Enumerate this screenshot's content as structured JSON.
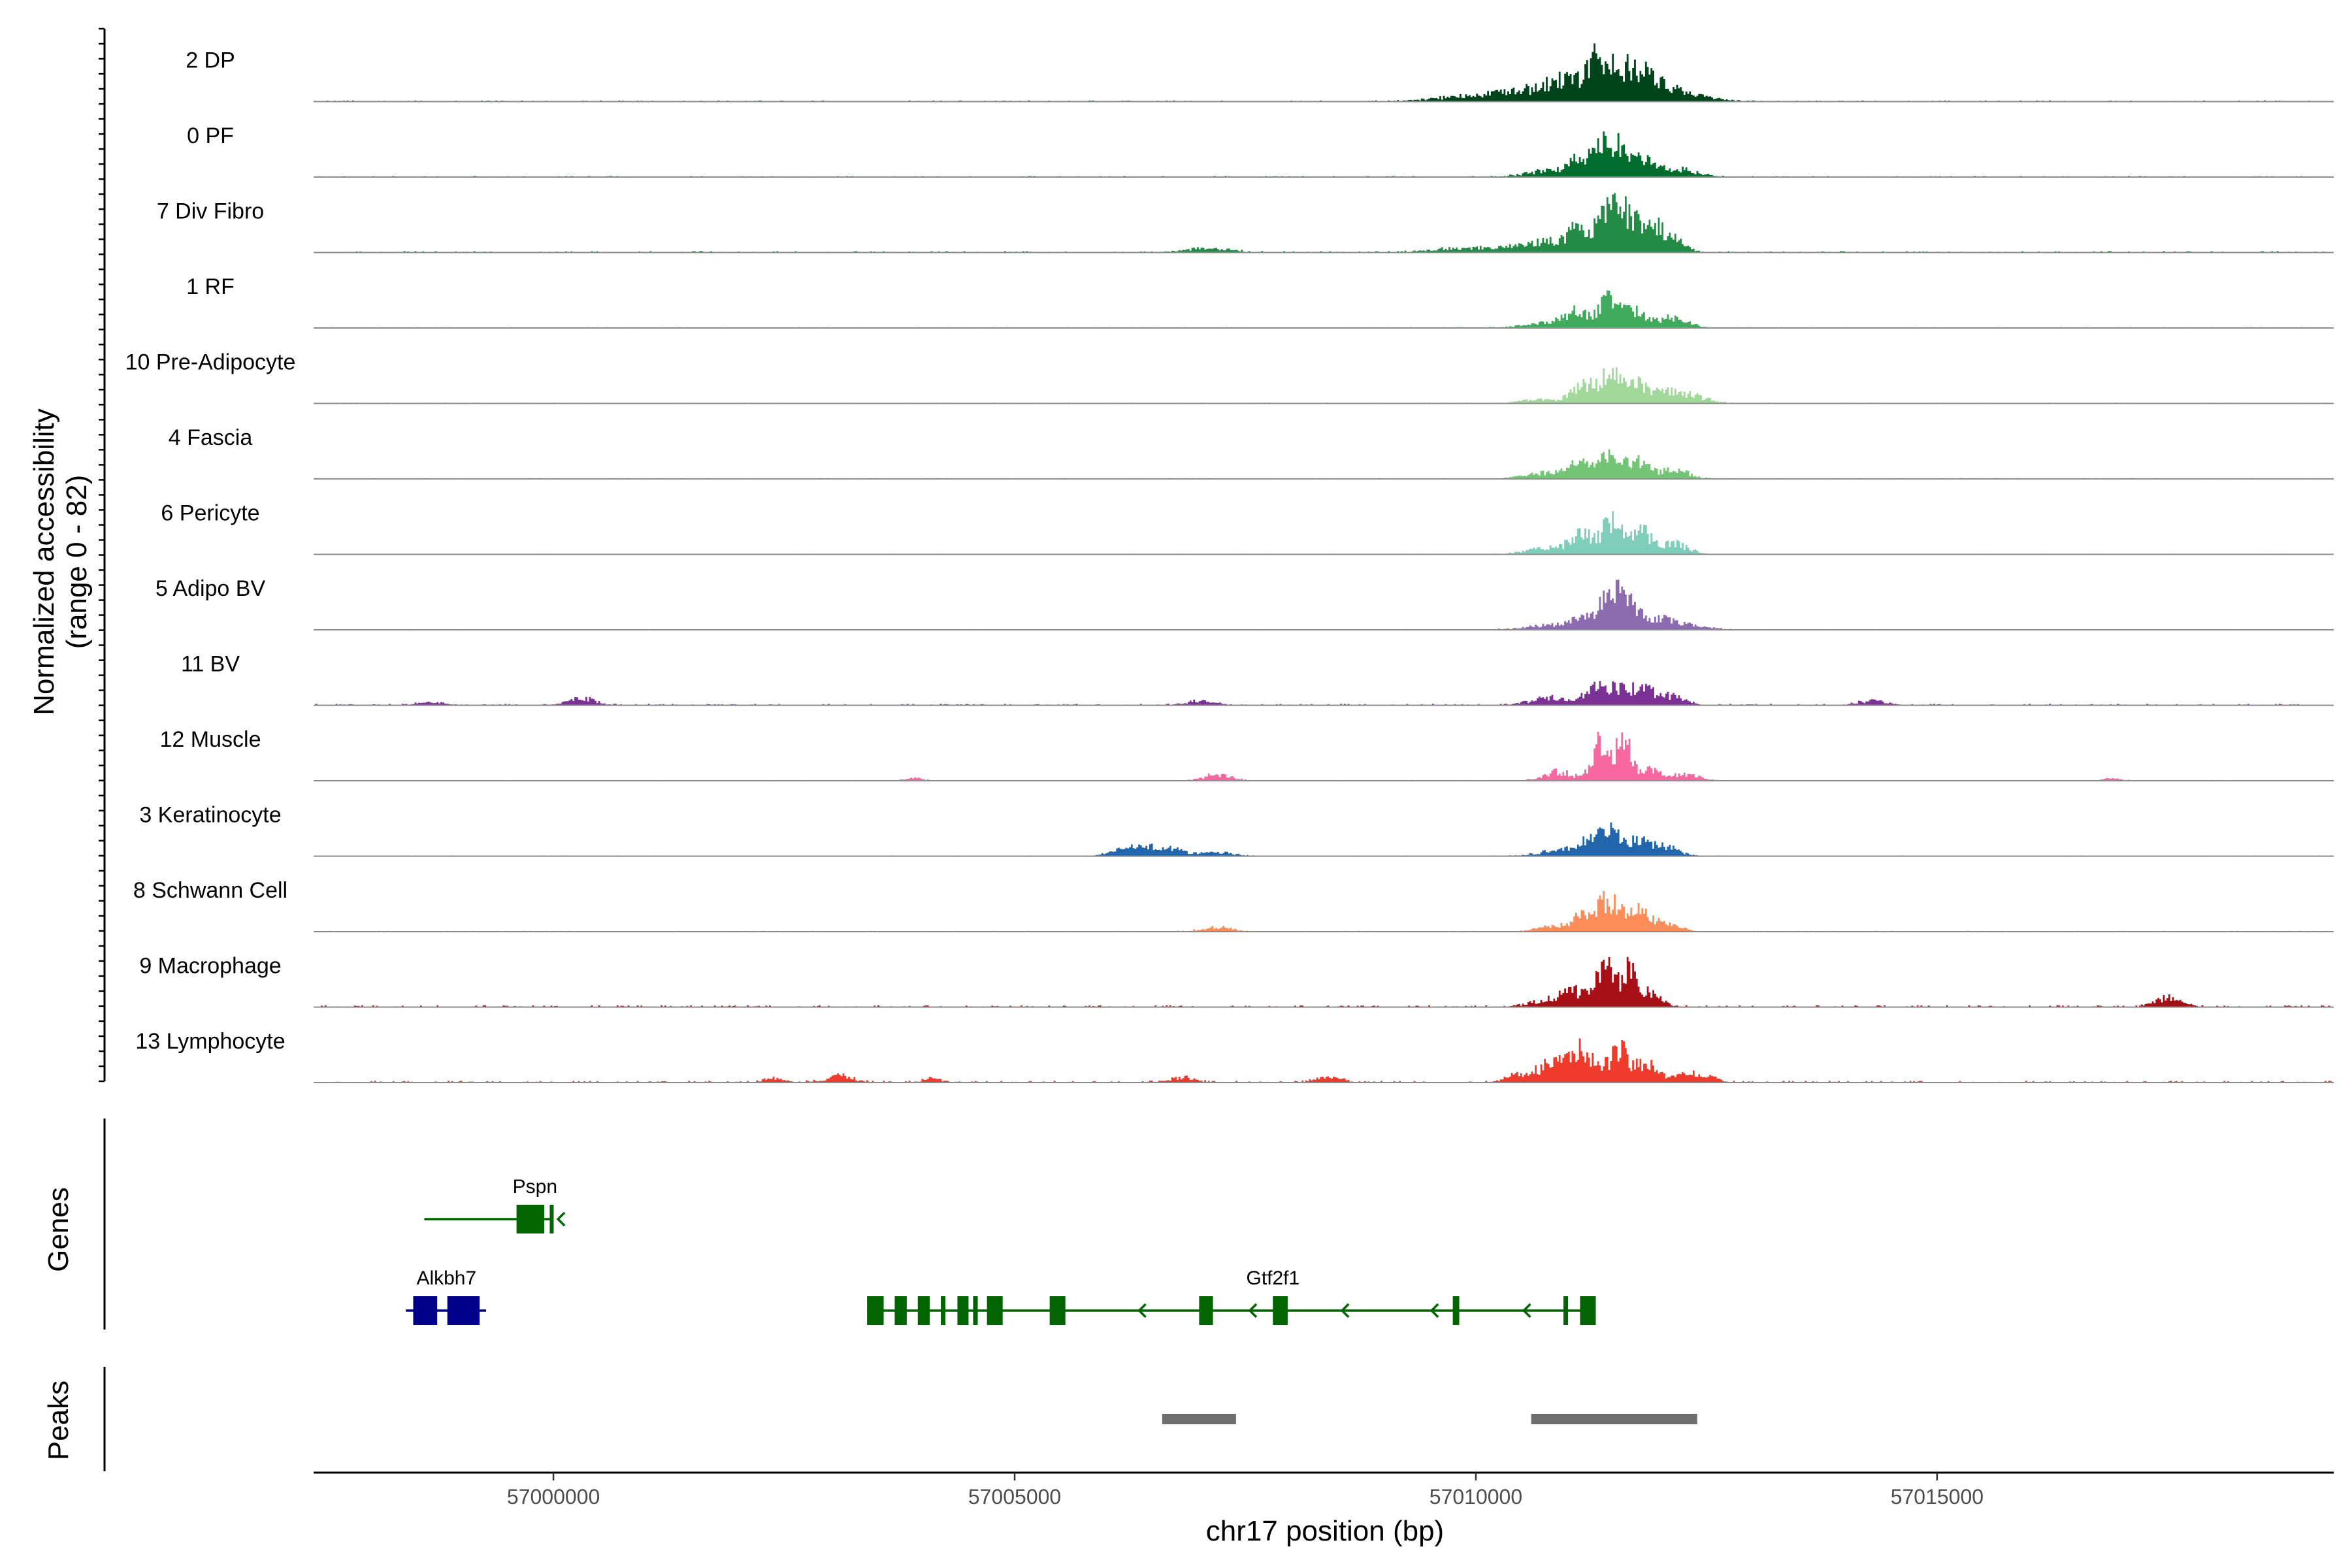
{
  "chart_data": {
    "type": "coverage",
    "chromosome": "chr17",
    "xlabel": "chr17 position (bp)",
    "xlim": [
      56997400,
      57019300
    ],
    "x_ticks": [
      57000000,
      57005000,
      57010000,
      57015000
    ],
    "x_tick_labels": [
      "57000000",
      "57005000",
      "57010000",
      "57015000"
    ],
    "ylabel_line1": "Normalized accessibility",
    "ylabel_line2": "(range 0 - 82)",
    "ylim": [
      0,
      82
    ],
    "track_labels": {
      "genes": "Genes",
      "peaks": "Peaks"
    },
    "tracks": [
      {
        "name": "2 DP",
        "color": "#00441b",
        "noise": 1.5,
        "mult": 1.0,
        "peaks": [
          [
            57009700,
            350,
            3
          ],
          [
            57010200,
            350,
            6
          ],
          [
            57010600,
            300,
            10
          ],
          [
            57010950,
            180,
            24
          ],
          [
            57011250,
            100,
            33
          ],
          [
            57011400,
            100,
            38
          ],
          [
            57011600,
            110,
            34
          ],
          [
            57011800,
            120,
            31
          ],
          [
            57012050,
            150,
            18
          ],
          [
            57012400,
            200,
            7
          ]
        ]
      },
      {
        "name": "0 PF",
        "color": "#006d2c",
        "noise": 1.5,
        "mult": 1.0,
        "peaks": [
          [
            57010800,
            250,
            8
          ],
          [
            57011150,
            120,
            22
          ],
          [
            57011400,
            100,
            40
          ],
          [
            57011600,
            100,
            32
          ],
          [
            57011850,
            120,
            22
          ],
          [
            57012200,
            200,
            10
          ]
        ]
      },
      {
        "name": "7 Div Fibro",
        "color": "#238b45",
        "noise": 2.0,
        "mult": 1.0,
        "peaks": [
          [
            57007000,
            150,
            5
          ],
          [
            57007300,
            150,
            3
          ],
          [
            57009800,
            300,
            5
          ],
          [
            57010400,
            250,
            6
          ],
          [
            57010800,
            200,
            12
          ],
          [
            57011100,
            110,
            26
          ],
          [
            57011400,
            100,
            60
          ],
          [
            57011600,
            100,
            48
          ],
          [
            57011850,
            120,
            32
          ],
          [
            57012100,
            150,
            20
          ]
        ]
      },
      {
        "name": "1 RF",
        "color": "#41ab5d",
        "noise": 1.2,
        "mult": 1.0,
        "peaks": [
          [
            57010800,
            250,
            7
          ],
          [
            57011100,
            130,
            20
          ],
          [
            57011450,
            110,
            36
          ],
          [
            57011750,
            120,
            22
          ],
          [
            57012150,
            150,
            14
          ]
        ]
      },
      {
        "name": "10 Pre-Adipocyte",
        "color": "#a1d99b",
        "noise": 1.2,
        "mult": 1.0,
        "peaks": [
          [
            57010700,
            200,
            5
          ],
          [
            57011150,
            120,
            24
          ],
          [
            57011450,
            110,
            38
          ],
          [
            57011750,
            130,
            26
          ],
          [
            57012100,
            150,
            14
          ],
          [
            57012400,
            150,
            8
          ]
        ]
      },
      {
        "name": "4 Fascia",
        "color": "#74c476",
        "noise": 1.2,
        "mult": 1.0,
        "peaks": [
          [
            57010800,
            250,
            8
          ],
          [
            57011150,
            120,
            20
          ],
          [
            57011450,
            110,
            32
          ],
          [
            57011750,
            120,
            22
          ],
          [
            57012150,
            150,
            12
          ]
        ]
      },
      {
        "name": "6 Pericyte",
        "color": "#7fcdbb",
        "noise": 1.0,
        "mult": 1.0,
        "peaks": [
          [
            57010800,
            250,
            8
          ],
          [
            57011150,
            120,
            24
          ],
          [
            57011480,
            110,
            42
          ],
          [
            57011800,
            120,
            28
          ],
          [
            57012150,
            150,
            14
          ]
        ]
      },
      {
        "name": "5 Adipo BV",
        "color": "#8c6bb1",
        "noise": 1.0,
        "mult": 1.0,
        "peaks": [
          [
            57010800,
            250,
            6
          ],
          [
            57011150,
            120,
            16
          ],
          [
            57011450,
            100,
            44
          ],
          [
            57011650,
            110,
            30
          ],
          [
            57011950,
            150,
            14
          ],
          [
            57012300,
            200,
            6
          ]
        ]
      },
      {
        "name": "11 BV",
        "color": "#7b3294",
        "noise": 2.0,
        "mult": 1.0,
        "peaks": [
          [
            56998700,
            150,
            4
          ],
          [
            57000300,
            150,
            9
          ],
          [
            57007000,
            150,
            6
          ],
          [
            57010800,
            200,
            10
          ],
          [
            57011300,
            120,
            22
          ],
          [
            57011550,
            110,
            18
          ],
          [
            57011800,
            120,
            20
          ],
          [
            57012100,
            150,
            12
          ],
          [
            57014300,
            150,
            6
          ]
        ]
      },
      {
        "name": "12 Muscle",
        "color": "#f768a1",
        "noise": 1.0,
        "mult": 1.0,
        "peaks": [
          [
            57003900,
            100,
            3
          ],
          [
            57007200,
            150,
            8
          ],
          [
            57010900,
            150,
            12
          ],
          [
            57011350,
            90,
            48
          ],
          [
            57011600,
            90,
            48
          ],
          [
            57011900,
            120,
            14
          ],
          [
            57012300,
            150,
            8
          ],
          [
            57016900,
            100,
            3
          ]
        ]
      },
      {
        "name": "3 Keratinocyte",
        "color": "#2166ac",
        "noise": 1.0,
        "mult": 1.0,
        "peaks": [
          [
            57006300,
            200,
            12
          ],
          [
            57006700,
            180,
            8
          ],
          [
            57007200,
            150,
            6
          ],
          [
            57010900,
            200,
            8
          ],
          [
            57011200,
            120,
            16
          ],
          [
            57011450,
            110,
            30
          ],
          [
            57011750,
            120,
            18
          ],
          [
            57012050,
            150,
            12
          ]
        ]
      },
      {
        "name": "8 Schwann Cell",
        "color": "#fc8d59",
        "noise": 1.2,
        "mult": 1.0,
        "peaks": [
          [
            57007200,
            150,
            6
          ],
          [
            57010900,
            200,
            8
          ],
          [
            57011200,
            120,
            20
          ],
          [
            57011450,
            100,
            40
          ],
          [
            57011750,
            120,
            26
          ],
          [
            57012050,
            150,
            12
          ]
        ]
      },
      {
        "name": "9 Macrophage",
        "color": "#a50f15",
        "noise": 2.5,
        "mult": 1.0,
        "peaks": [
          [
            57010800,
            200,
            10
          ],
          [
            57011100,
            150,
            16
          ],
          [
            57011400,
            90,
            48
          ],
          [
            57011650,
            90,
            44
          ],
          [
            57011900,
            120,
            16
          ],
          [
            57017500,
            150,
            12
          ]
        ]
      },
      {
        "name": "13 Lymphocyte",
        "color": "#ef3b2c",
        "noise": 2.5,
        "mult": 1.0,
        "peaks": [
          [
            57002400,
            100,
            6
          ],
          [
            57003100,
            150,
            8
          ],
          [
            57004100,
            100,
            5
          ],
          [
            57006800,
            150,
            6
          ],
          [
            57008400,
            120,
            8
          ],
          [
            57010450,
            150,
            8
          ],
          [
            57010800,
            150,
            22
          ],
          [
            57011050,
            120,
            34
          ],
          [
            57011250,
            110,
            22
          ],
          [
            57011550,
            100,
            44
          ],
          [
            57011850,
            120,
            24
          ],
          [
            57012300,
            150,
            10
          ],
          [
            57012500,
            120,
            6
          ]
        ]
      }
    ],
    "genes": [
      {
        "name": "Pspn",
        "color": "#006400",
        "strand": "-",
        "row": 0,
        "start": 56998600,
        "end": 57000000,
        "exons": [
          [
            56999600,
            56999900
          ],
          [
            56999960,
            57000000
          ]
        ],
        "arrows": [
          57000050
        ]
      },
      {
        "name": "Alkbh7",
        "color": "#00008b",
        "strand": "-",
        "row": 1,
        "start": 56998400,
        "end": 56999270,
        "exons": [
          [
            56998480,
            56998740
          ],
          [
            56998850,
            56999200
          ]
        ],
        "arrows": []
      },
      {
        "name": "Gtf2f1",
        "color": "#006400",
        "strand": "-",
        "row": 1,
        "start": 57003400,
        "end": 57011300,
        "exons": [
          [
            57003400,
            57003580
          ],
          [
            57003700,
            57003830
          ],
          [
            57003950,
            57004080
          ],
          [
            57004200,
            57004250
          ],
          [
            57004380,
            57004500
          ],
          [
            57004550,
            57004600
          ],
          [
            57004700,
            57004870
          ],
          [
            57005380,
            57005550
          ],
          [
            57007000,
            57007150
          ],
          [
            57007800,
            57007960
          ],
          [
            57009750,
            57009820
          ],
          [
            57010950,
            57011000
          ],
          [
            57011130,
            57011300
          ]
        ],
        "arrows": [
          57006350,
          57007550,
          57008550,
          57009520,
          57010520
        ],
        "label_pos": 57007800
      }
    ],
    "peak_regions": [
      [
        57006600,
        57007400
      ],
      [
        57010600,
        57012400
      ]
    ]
  }
}
